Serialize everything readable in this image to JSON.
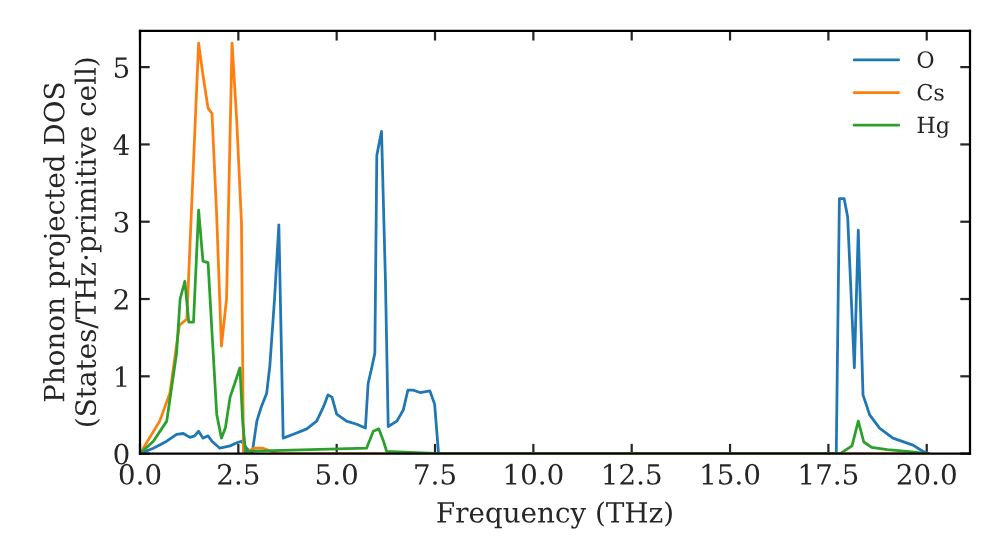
{
  "chart_data": {
    "type": "line",
    "xlabel": "Frequency (THz)",
    "ylabel": "Phonon projected DOS\n(States/THz·primitive cell)",
    "xlim": [
      0,
      21.1
    ],
    "ylim": [
      0,
      5.47
    ],
    "xticks": [
      {
        "value": 0,
        "label": "0.0"
      },
      {
        "value": 2.5,
        "label": "2.5"
      },
      {
        "value": 5,
        "label": "5.0"
      },
      {
        "value": 7.5,
        "label": "7.5"
      },
      {
        "value": 10,
        "label": "10.0"
      },
      {
        "value": 12.5,
        "label": "12.5"
      },
      {
        "value": 15,
        "label": "15.0"
      },
      {
        "value": 17.5,
        "label": "17.5"
      },
      {
        "value": 20,
        "label": "20.0"
      }
    ],
    "yticks": [
      0,
      1,
      2,
      3,
      4,
      5
    ],
    "grid": false,
    "legend": "top right",
    "series": [
      {
        "name": "O",
        "color": "#1f77b4",
        "x": [
          0,
          0.34,
          0.68,
          0.93,
          1.1,
          1.27,
          1.39,
          1.49,
          1.6,
          1.73,
          1.83,
          2.03,
          2.29,
          2.46,
          2.58,
          2.71,
          2.85,
          2.97,
          3.08,
          3.22,
          3.3,
          3.42,
          3.53,
          3.64,
          3.9,
          4.24,
          4.49,
          4.66,
          4.78,
          4.88,
          5.0,
          5.25,
          5.51,
          5.73,
          5.8,
          5.9,
          5.97,
          6.02,
          6.14,
          6.24,
          6.31,
          6.53,
          6.69,
          6.81,
          6.95,
          7.12,
          7.37,
          7.49,
          7.59,
          17.7,
          17.78,
          17.9,
          17.99,
          18.16,
          18.26,
          18.38,
          18.55,
          18.8,
          19.14,
          19.65,
          19.9,
          20.05
        ],
        "values": [
          0,
          0.07,
          0.16,
          0.25,
          0.26,
          0.21,
          0.23,
          0.29,
          0.2,
          0.23,
          0.16,
          0.07,
          0.1,
          0.14,
          0.16,
          0.07,
          0,
          0.42,
          0.6,
          0.78,
          1.13,
          2.0,
          2.96,
          0.2,
          0.25,
          0.32,
          0.42,
          0.6,
          0.76,
          0.73,
          0.51,
          0.42,
          0.38,
          0.33,
          0.91,
          1.13,
          1.3,
          3.86,
          4.17,
          2.23,
          0.35,
          0.42,
          0.56,
          0.82,
          0.82,
          0.79,
          0.81,
          0.64,
          0,
          0,
          3.3,
          3.3,
          3.06,
          1.11,
          2.89,
          0.76,
          0.5,
          0.33,
          0.2,
          0.11,
          0.03,
          0
        ]
      },
      {
        "name": "Cs",
        "color": "#ff7f0e",
        "x": [
          0,
          0.5,
          0.76,
          1.0,
          1.19,
          1.49,
          1.6,
          1.73,
          1.83,
          1.95,
          2.07,
          2.2,
          2.34,
          2.46,
          2.58,
          2.63,
          2.9,
          3.13,
          3.47,
          20.0
        ],
        "values": [
          0,
          0.42,
          0.78,
          1.66,
          1.74,
          5.31,
          4.9,
          4.47,
          4.4,
          3.07,
          1.39,
          2.0,
          5.31,
          4.3,
          2.98,
          0,
          0.07,
          0.07,
          0,
          0
        ]
      },
      {
        "name": "Hg",
        "color": "#2ca02c",
        "x": [
          0,
          0.34,
          0.68,
          0.93,
          1.02,
          1.14,
          1.24,
          1.36,
          1.49,
          1.6,
          1.73,
          1.83,
          1.95,
          2.07,
          2.17,
          2.29,
          2.41,
          2.54,
          2.61,
          2.68,
          5.76,
          5.93,
          6.07,
          6.19,
          6.27,
          7.63,
          17.8,
          18.1,
          18.26,
          18.4,
          18.6,
          19.0,
          19.5,
          20.0
        ],
        "values": [
          0,
          0.16,
          0.42,
          1.3,
          2.0,
          2.23,
          1.7,
          1.7,
          3.15,
          2.49,
          2.47,
          1.57,
          0.51,
          0.2,
          0.33,
          0.73,
          0.91,
          1.11,
          0.42,
          0.03,
          0.07,
          0.29,
          0.32,
          0.16,
          0.03,
          0,
          0,
          0.1,
          0.42,
          0.15,
          0.08,
          0.05,
          0.03,
          0
        ]
      }
    ]
  }
}
